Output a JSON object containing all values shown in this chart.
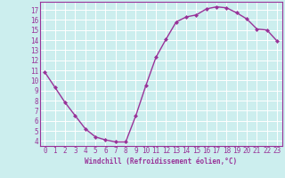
{
  "x": [
    0,
    1,
    2,
    3,
    4,
    5,
    6,
    7,
    8,
    9,
    10,
    11,
    12,
    13,
    14,
    15,
    16,
    17,
    18,
    19,
    20,
    21,
    22,
    23
  ],
  "y": [
    10.8,
    9.3,
    7.8,
    6.5,
    5.2,
    4.4,
    4.1,
    3.9,
    3.9,
    6.5,
    9.5,
    12.3,
    14.1,
    15.8,
    16.3,
    16.5,
    17.1,
    17.3,
    17.2,
    16.7,
    16.1,
    15.1,
    15.0,
    13.9
  ],
  "line_color": "#993399",
  "marker": "D",
  "marker_size": 2.0,
  "bg_color": "#cceeee",
  "grid_color": "#ffffff",
  "xlabel": "Windchill (Refroidissement éolien,°C)",
  "xlabel_color": "#993399",
  "tick_color": "#993399",
  "xlim_min": -0.5,
  "xlim_max": 23.5,
  "ylim_min": 3.5,
  "ylim_max": 17.8,
  "yticks": [
    4,
    5,
    6,
    7,
    8,
    9,
    10,
    11,
    12,
    13,
    14,
    15,
    16,
    17
  ],
  "xticks": [
    0,
    1,
    2,
    3,
    4,
    5,
    6,
    7,
    8,
    9,
    10,
    11,
    12,
    13,
    14,
    15,
    16,
    17,
    18,
    19,
    20,
    21,
    22,
    23
  ],
  "font_family": "monospace",
  "tick_fontsize": 5.5,
  "xlabel_fontsize": 5.5,
  "linewidth": 1.0
}
